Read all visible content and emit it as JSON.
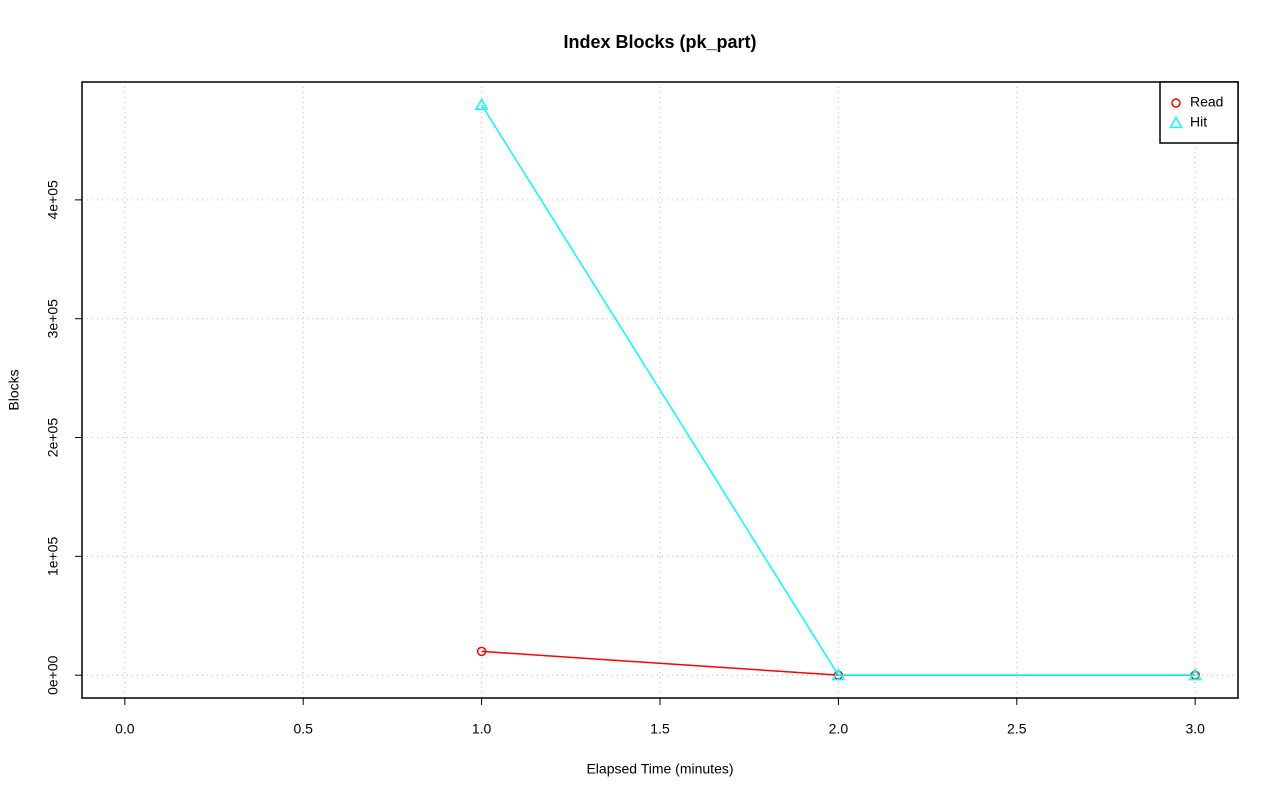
{
  "chart_data": {
    "type": "line",
    "title": "Index Blocks (pk_part)",
    "x_label": "Elapsed Time (minutes)",
    "y_label": "Blocks",
    "x": [
      1,
      2,
      3
    ],
    "series": [
      {
        "name": "Read",
        "color": "#ff0000",
        "marker": "circle",
        "values": [
          20000,
          0,
          0
        ]
      },
      {
        "name": "Hit",
        "color": "#00ffff",
        "marker": "triangle",
        "values": [
          480000,
          0,
          0
        ]
      }
    ],
    "xlim": [
      -0.12,
      3.12
    ],
    "ylim": [
      -19200,
      499200
    ],
    "xticks": [
      {
        "value": 0,
        "label": "0.0"
      },
      0.5,
      {
        "value": 1,
        "label": "1.0"
      },
      1.5,
      {
        "value": 2,
        "label": "2.0"
      },
      2.5,
      {
        "value": 3,
        "label": "3.0"
      }
    ],
    "yticks": [
      {
        "value": 0,
        "label": "0e+00"
      },
      {
        "value": 100000,
        "label": "1e+05"
      },
      {
        "value": 200000,
        "label": "2e+05"
      },
      {
        "value": 300000,
        "label": "3e+05"
      },
      {
        "value": 400000,
        "label": "4e+05"
      }
    ],
    "grid": true,
    "legend": "top-right"
  }
}
